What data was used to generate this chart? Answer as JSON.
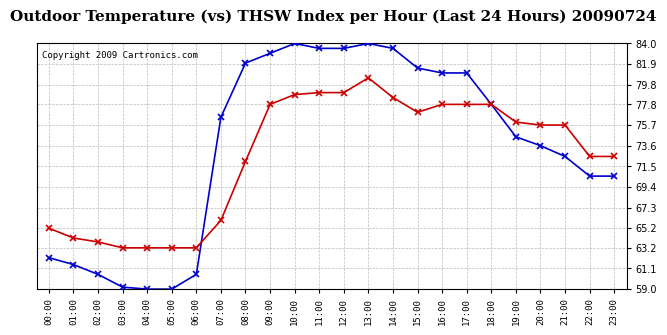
{
  "title": "Outdoor Temperature (vs) THSW Index per Hour (Last 24 Hours) 20090724",
  "copyright": "Copyright 2009 Cartronics.com",
  "hours": [
    "00:00",
    "01:00",
    "02:00",
    "03:00",
    "04:00",
    "05:00",
    "06:00",
    "07:00",
    "08:00",
    "09:00",
    "10:00",
    "11:00",
    "12:00",
    "13:00",
    "14:00",
    "15:00",
    "16:00",
    "17:00",
    "18:00",
    "19:00",
    "20:00",
    "21:00",
    "22:00",
    "23:00"
  ],
  "temp": [
    65.2,
    64.2,
    63.8,
    63.2,
    63.2,
    63.2,
    63.2,
    66.0,
    72.0,
    77.8,
    78.8,
    79.0,
    79.0,
    80.5,
    78.5,
    77.0,
    77.8,
    77.8,
    77.8,
    76.0,
    75.7,
    75.7,
    72.5,
    72.5
  ],
  "thsw": [
    62.2,
    61.5,
    60.5,
    59.2,
    59.0,
    59.0,
    60.5,
    76.5,
    82.0,
    83.0,
    84.0,
    83.5,
    83.5,
    84.0,
    83.5,
    81.5,
    81.0,
    81.0,
    77.8,
    74.5,
    73.6,
    72.5,
    70.5,
    70.5
  ],
  "ylim": [
    59.0,
    84.0
  ],
  "yticks": [
    59.0,
    61.1,
    63.2,
    65.2,
    67.3,
    69.4,
    71.5,
    73.6,
    75.7,
    77.8,
    79.8,
    81.9,
    84.0
  ],
  "temp_color": "#cc0000",
  "thsw_color": "#0000cc",
  "bg_color": "#ffffff",
  "plot_bg": "#ffffff",
  "grid_color": "#bbbbbb",
  "title_fontsize": 11,
  "copyright_fontsize": 6.5
}
